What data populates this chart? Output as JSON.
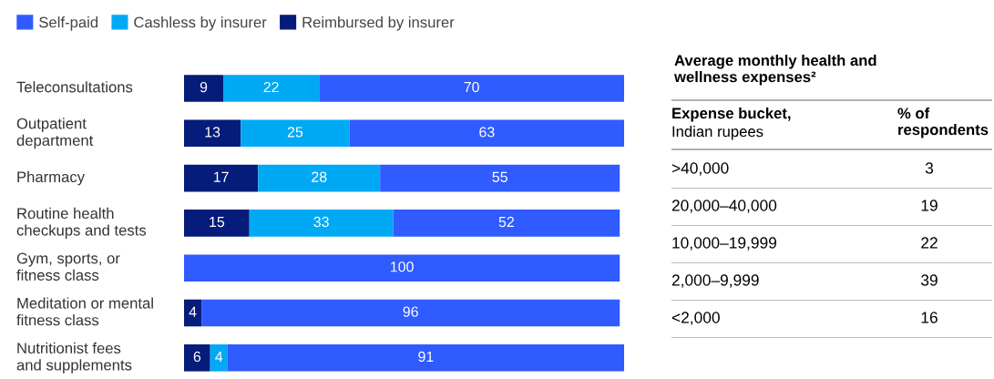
{
  "chart_data": [
    {
      "type": "bar",
      "orientation": "horizontal",
      "stacked": true,
      "legend": "top left",
      "data_labels": true,
      "categories": [
        "Teleconsultations",
        "Outpatient\ndepartment",
        "Pharmacy",
        "Routine health\ncheckups and tests",
        "Gym, sports, or\nfitness class",
        "Meditation or mental\nfitness class",
        "Nutritionist fees\nand supplements"
      ],
      "xlim": [
        0,
        101
      ],
      "series": [
        {
          "name": "Reimbursed by insurer",
          "color": "#051c7a",
          "values": [
            9,
            13,
            17,
            15,
            null,
            4,
            6
          ]
        },
        {
          "name": "Cashless by insurer",
          "color": "#00a9f4",
          "values": [
            22,
            25,
            28,
            33,
            null,
            null,
            4
          ]
        },
        {
          "name": "Self-paid",
          "color": "#2f5bff",
          "values": [
            70,
            63,
            55,
            52,
            100,
            96,
            91
          ]
        }
      ]
    },
    {
      "type": "other",
      "title": "Average monthly health and\nwellness expenses²",
      "data_labels": true,
      "annotations": [
        "Expense bucket,",
        "Indian rupees",
        "% of\nrespondents"
      ],
      "categories": [
        ">40,000",
        "20,000–40,000",
        "10,000–19,999",
        "2,000–9,999",
        "<2,000"
      ],
      "values": [
        3,
        19,
        22,
        39,
        16
      ]
    }
  ]
}
